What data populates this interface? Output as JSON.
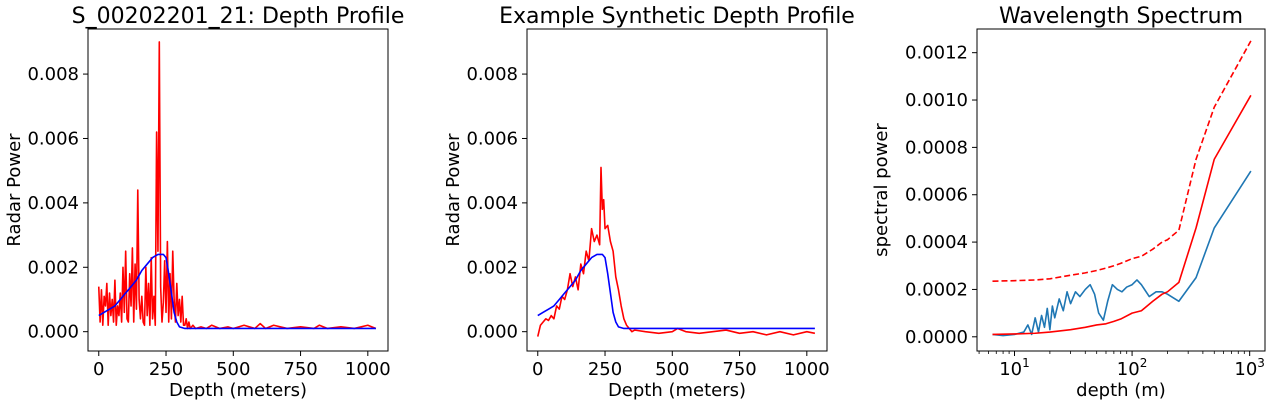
{
  "chart_data": [
    {
      "type": "line",
      "title": "S_00202201_21: Depth Profile",
      "xlabel": "Depth (meters)",
      "ylabel": "Radar Power",
      "xlim": [
        -40,
        1075
      ],
      "ylim": [
        -0.0006,
        0.0094
      ],
      "xticks": [
        0,
        250,
        500,
        750,
        1000
      ],
      "xtick_labels": [
        "0",
        "250",
        "500",
        "750",
        "1000"
      ],
      "yticks": [
        0.0,
        0.002,
        0.004,
        0.006,
        0.008
      ],
      "ytick_labels": [
        "0.000",
        "0.002",
        "0.004",
        "0.006",
        "0.008"
      ],
      "grid": false,
      "series": [
        {
          "color": "#ff0000",
          "x": [
            0,
            5,
            10,
            15,
            20,
            25,
            30,
            35,
            40,
            45,
            50,
            55,
            60,
            65,
            70,
            75,
            80,
            85,
            90,
            95,
            100,
            105,
            110,
            115,
            120,
            125,
            130,
            135,
            140,
            145,
            150,
            155,
            160,
            165,
            170,
            175,
            180,
            185,
            190,
            195,
            200,
            205,
            210,
            215,
            220,
            225,
            230,
            235,
            240,
            245,
            250,
            255,
            260,
            265,
            270,
            275,
            280,
            285,
            290,
            295,
            300,
            305,
            310,
            315,
            320,
            325,
            330,
            335,
            340,
            350,
            360,
            380,
            400,
            420,
            450,
            480,
            500,
            540,
            580,
            600,
            620,
            650,
            700,
            750,
            800,
            820,
            850,
            900,
            950,
            1000,
            1030
          ],
          "y": [
            0.0014,
            0.0003,
            0.0013,
            0.0002,
            0.0011,
            0.0008,
            0.0015,
            0.0002,
            0.0012,
            0.0005,
            0.001,
            0.0003,
            0.0016,
            0.0002,
            0.0008,
            0.0005,
            0.0012,
            0.0003,
            0.002,
            0.0006,
            0.0025,
            0.0004,
            0.0003,
            0.0018,
            0.0008,
            0.0026,
            0.0003,
            0.0021,
            0.0007,
            0.0044,
            0.001,
            0.0004,
            0.0011,
            0.0003,
            0.0002,
            0.002,
            0.0005,
            0.0015,
            0.0002,
            0.0023,
            0.0004,
            0.0011,
            0.0002,
            0.0062,
            0.0025,
            0.009,
            0.0014,
            0.0003,
            0.0009,
            0.0022,
            0.0006,
            0.0028,
            0.0003,
            0.0018,
            0.0004,
            0.0025,
            0.001,
            0.0003,
            0.0015,
            0.0005,
            0.001,
            0.0003,
            0.0011,
            0.0002,
            0.0002,
            0.0004,
            0.0001,
            0.0003,
            0.0001,
            0.0002,
            0.0001,
            0.00015,
            0.0001,
            0.0002,
            0.0001,
            0.00015,
            0.0001,
            0.0002,
            0.0001,
            0.00025,
            0.0001,
            0.0002,
            0.0001,
            0.00015,
            0.0001,
            0.0002,
            0.0001,
            0.00015,
            0.0001,
            0.0002,
            0.0001
          ]
        },
        {
          "color": "#0000ff",
          "x": [
            0,
            20,
            40,
            60,
            80,
            100,
            120,
            140,
            160,
            180,
            200,
            220,
            240,
            250,
            260,
            270,
            280,
            290,
            300,
            320,
            340,
            400,
            500,
            600,
            700,
            800,
            900,
            1000,
            1030
          ],
          "y": [
            0.0005,
            0.0006,
            0.0007,
            0.0008,
            0.001,
            0.0012,
            0.0014,
            0.0016,
            0.0019,
            0.0021,
            0.0023,
            0.0024,
            0.0024,
            0.0023,
            0.0018,
            0.0012,
            0.0006,
            0.0003,
            0.00015,
            0.0001,
            0.0001,
            0.0001,
            0.0001,
            0.0001,
            0.0001,
            0.0001,
            0.0001,
            0.0001,
            0.0001
          ]
        }
      ]
    },
    {
      "type": "line",
      "title": "Example Synthetic Depth Profile",
      "xlabel": "Depth (meters)",
      "ylabel": "Radar Power",
      "xlim": [
        -40,
        1075
      ],
      "ylim": [
        -0.0006,
        0.0094
      ],
      "xticks": [
        0,
        250,
        500,
        750,
        1000
      ],
      "xtick_labels": [
        "0",
        "250",
        "500",
        "750",
        "1000"
      ],
      "yticks": [
        0.0,
        0.002,
        0.004,
        0.006,
        0.008
      ],
      "ytick_labels": [
        "0.000",
        "0.002",
        "0.004",
        "0.006",
        "0.008"
      ],
      "grid": false,
      "series": [
        {
          "color": "#ff0000",
          "x": [
            0,
            10,
            20,
            30,
            40,
            50,
            60,
            70,
            80,
            90,
            100,
            110,
            120,
            130,
            140,
            150,
            160,
            170,
            180,
            190,
            200,
            210,
            220,
            230,
            235,
            240,
            245,
            250,
            260,
            270,
            280,
            290,
            300,
            310,
            320,
            330,
            340,
            350,
            360,
            400,
            450,
            500,
            520,
            550,
            600,
            650,
            700,
            750,
            800,
            850,
            900,
            950,
            1000,
            1030
          ],
          "y": [
            -0.00015,
            0.0002,
            0.0003,
            0.0004,
            0.00035,
            0.0005,
            0.0004,
            0.0008,
            0.0007,
            0.0011,
            0.001,
            0.0013,
            0.0018,
            0.0014,
            0.0017,
            0.0013,
            0.0021,
            0.0018,
            0.0025,
            0.0022,
            0.0032,
            0.0028,
            0.003,
            0.0027,
            0.0051,
            0.0038,
            0.0041,
            0.0032,
            0.0033,
            0.0028,
            0.0025,
            0.0017,
            0.0013,
            0.0008,
            0.0004,
            0.0002,
            0.0001,
            0.0,
            5e-05,
            0.0,
            -5e-05,
            0.0,
            0.0001,
            0.0,
            -5e-05,
            0.0,
            5e-05,
            -5e-05,
            0.0,
            -0.0001,
            0.0,
            -0.0001,
            0.0,
            -5e-05
          ]
        },
        {
          "color": "#0000ff",
          "x": [
            0,
            20,
            40,
            60,
            80,
            100,
            120,
            140,
            160,
            180,
            200,
            220,
            240,
            250,
            260,
            270,
            280,
            290,
            300,
            320,
            340,
            400,
            500,
            600,
            700,
            800,
            900,
            1000,
            1030
          ],
          "y": [
            0.0005,
            0.0006,
            0.0007,
            0.0008,
            0.001,
            0.0012,
            0.0014,
            0.0016,
            0.0019,
            0.0021,
            0.0023,
            0.0024,
            0.0024,
            0.0023,
            0.0018,
            0.0012,
            0.0006,
            0.0003,
            0.00015,
            0.0001,
            0.0001,
            0.0001,
            0.0001,
            0.0001,
            0.0001,
            0.0001,
            0.0001,
            0.0001,
            0.0001
          ]
        }
      ]
    },
    {
      "type": "line",
      "title": "Wavelength Spectrum",
      "xlabel": "depth (m)",
      "ylabel": "spectral power",
      "xscale": "log",
      "xlim": [
        4.8,
        1350
      ],
      "ylim": [
        -6e-05,
        0.0013
      ],
      "xticks": [
        10,
        100,
        1000
      ],
      "xtick_labels": [
        {
          "base": "10",
          "exp": "1"
        },
        {
          "base": "10",
          "exp": "2"
        },
        {
          "base": "10",
          "exp": "3"
        }
      ],
      "yticks": [
        0.0,
        0.0002,
        0.0004,
        0.0006,
        0.0008,
        0.001,
        0.0012
      ],
      "ytick_labels": [
        "0.0000",
        "0.0002",
        "0.0004",
        "0.0006",
        "0.0008",
        "0.0010",
        "0.0012"
      ],
      "grid": false,
      "series": [
        {
          "color": "#1f77b4",
          "dash": "solid",
          "x": [
            6.5,
            8,
            10,
            12,
            13,
            14,
            15,
            16,
            17,
            18,
            19,
            20,
            21,
            22,
            24,
            26,
            28,
            30,
            33,
            36,
            40,
            44,
            48,
            52,
            57,
            62,
            68,
            75,
            82,
            90,
            100,
            110,
            120,
            140,
            160,
            180,
            200,
            250,
            350,
            500,
            1024
          ],
          "y": [
            1e-05,
            5e-06,
            1e-05,
            2e-05,
            5e-05,
            1e-05,
            8e-05,
            2e-05,
            9e-05,
            4e-05,
            0.00012,
            3e-05,
            0.00013,
            8e-05,
            0.00016,
            0.00011,
            0.00019,
            0.00014,
            0.00019,
            0.00017,
            0.0002,
            0.00022,
            0.00018,
            0.0001,
            7e-05,
            0.00015,
            0.00022,
            0.0002,
            0.00019,
            0.00021,
            0.00022,
            0.00024,
            0.00022,
            0.00017,
            0.00019,
            0.00019,
            0.00018,
            0.00015,
            0.00025,
            0.00046,
            0.0007
          ]
        },
        {
          "color": "#ff0000",
          "dash": "solid",
          "x": [
            6.5,
            10,
            15,
            20,
            30,
            40,
            50,
            60,
            70,
            80,
            100,
            120,
            150,
            180,
            200,
            250,
            350,
            500,
            1024
          ],
          "y": [
            1e-05,
            1.2e-05,
            1.5e-05,
            2e-05,
            3e-05,
            4e-05,
            5e-05,
            5.5e-05,
            6.5e-05,
            7.5e-05,
            0.0001,
            0.00011,
            0.00015,
            0.00018,
            0.00019,
            0.00023,
            0.00046,
            0.00075,
            0.00102
          ]
        },
        {
          "color": "#ff0000",
          "dash": "dashed",
          "x": [
            6.5,
            10,
            15,
            20,
            30,
            40,
            50,
            60,
            70,
            80,
            100,
            120,
            150,
            180,
            200,
            250,
            350,
            500,
            1024
          ],
          "y": [
            0.000235,
            0.000237,
            0.00024,
            0.000245,
            0.00026,
            0.00027,
            0.00028,
            0.00029,
            0.0003,
            0.00031,
            0.00033,
            0.00034,
            0.00037,
            0.0004,
            0.00041,
            0.00045,
            0.00075,
            0.00097,
            0.00125
          ]
        }
      ]
    }
  ]
}
